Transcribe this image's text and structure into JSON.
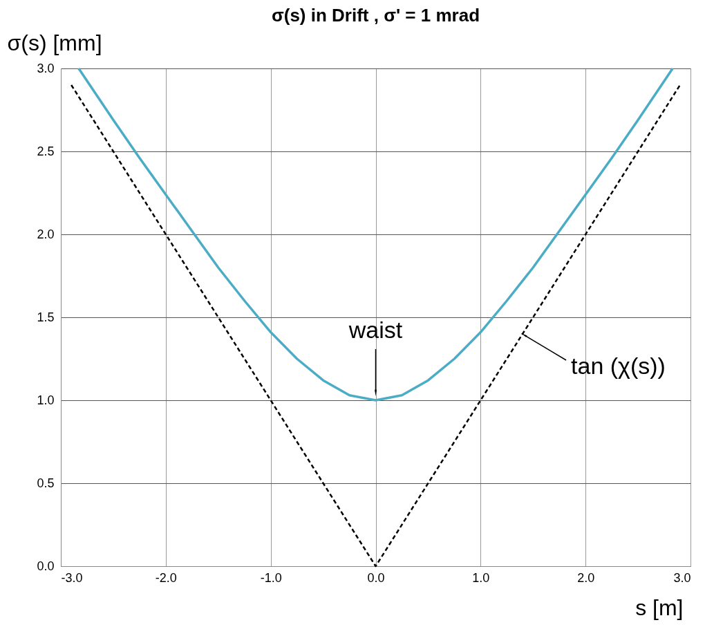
{
  "chart_data": {
    "type": "line",
    "title": "σ(s) in Drift ,  σ' = 1 mrad",
    "xlabel": "s [m]",
    "ylabel": "σ(s) [mm]",
    "xlim": [
      -3,
      3
    ],
    "xticks": [
      {
        "value": -3,
        "label": "-3.0"
      },
      {
        "value": -2,
        "label": "-2.0"
      },
      {
        "value": -1,
        "label": "-1.0"
      },
      {
        "value": 0,
        "label": "0.0"
      },
      {
        "value": 1,
        "label": "1.0"
      },
      {
        "value": 2,
        "label": "2.0"
      },
      {
        "value": 3,
        "label": "3.0"
      }
    ],
    "ylim": [
      0,
      3
    ],
    "yticks": [
      {
        "value": 0,
        "label": "0.0"
      },
      {
        "value": 0.5,
        "label": "0.5"
      },
      {
        "value": 1,
        "label": "1.0"
      },
      {
        "value": 1.5,
        "label": "1.5"
      },
      {
        "value": 2,
        "label": "2.0"
      },
      {
        "value": 2.5,
        "label": "2.5"
      },
      {
        "value": 3,
        "label": "3.0"
      }
    ],
    "grid": true,
    "series": [
      {
        "color": "#4bacc6",
        "line_style": "solid",
        "x": [
          -2.83,
          -2.5,
          -2.25,
          -2.0,
          -1.75,
          -1.5,
          -1.25,
          -1.0,
          -0.75,
          -0.5,
          -0.25,
          0,
          0.25,
          0.5,
          0.75,
          1.0,
          1.25,
          1.5,
          1.75,
          2.0,
          2.25,
          2.5,
          2.83
        ],
        "values": [
          3.0,
          2.69,
          2.46,
          2.24,
          2.02,
          1.8,
          1.6,
          1.41,
          1.25,
          1.12,
          1.03,
          1.0,
          1.03,
          1.12,
          1.25,
          1.41,
          1.6,
          1.8,
          2.02,
          2.24,
          2.46,
          2.69,
          3.0
        ]
      },
      {
        "color": "#000000",
        "line_style": "dashed",
        "x": [
          -2.9,
          0,
          2.9
        ],
        "values": [
          2.9,
          0,
          2.9
        ]
      }
    ],
    "annotations": [
      {
        "text": "waist",
        "x": 0,
        "y": 1.0
      },
      {
        "text": "tan (χ(s))",
        "x": 1.4,
        "y": 1.4
      }
    ]
  }
}
